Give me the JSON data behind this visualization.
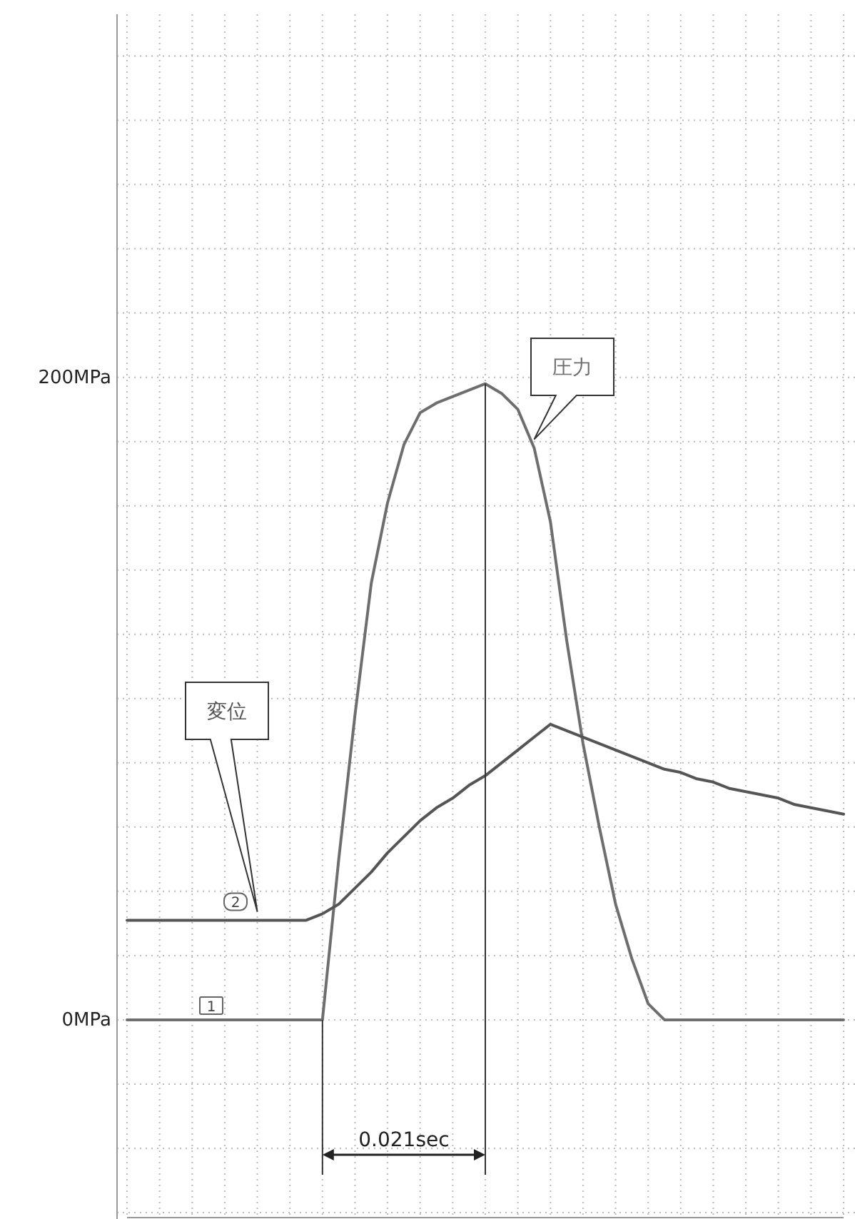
{
  "chart_data": {
    "type": "line",
    "categories": [
      null,
      null,
      null,
      null,
      null,
      null,
      null,
      null,
      null,
      null,
      null,
      null,
      null,
      null,
      null,
      null,
      null,
      null,
      null,
      null,
      null,
      null,
      null,
      null,
      null,
      null,
      null,
      null,
      null,
      null,
      null,
      null,
      null,
      null,
      null,
      null,
      null,
      null,
      null,
      null,
      null,
      null,
      null,
      null,
      null
    ],
    "ylim": [
      -62,
      313
    ],
    "yticks": [
      {
        "value": -60,
        "label": null
      },
      {
        "value": -40,
        "label": null
      },
      {
        "value": -20,
        "label": null
      },
      {
        "value": 0,
        "label": "0MPa"
      },
      {
        "value": 20,
        "label": null
      },
      {
        "value": 40,
        "label": null
      },
      {
        "value": 60,
        "label": null
      },
      {
        "value": 80,
        "label": null
      },
      {
        "value": 100,
        "label": null
      },
      {
        "value": 120,
        "label": null
      },
      {
        "value": 140,
        "label": null
      },
      {
        "value": 160,
        "label": null
      },
      {
        "value": 180,
        "label": null
      },
      {
        "value": 200,
        "label": "200MPa"
      },
      {
        "value": 220,
        "label": null
      },
      {
        "value": 240,
        "label": null
      },
      {
        "value": 260,
        "label": null
      },
      {
        "value": 280,
        "label": null
      },
      {
        "value": 300,
        "label": null
      }
    ],
    "grid": true,
    "series": [
      {
        "name": "圧力",
        "color": "#6e6e6e",
        "values": [
          0,
          0,
          0,
          0,
          0,
          0,
          0,
          0,
          0,
          0,
          0,
          0,
          0,
          50,
          95,
          136,
          161,
          179,
          189,
          192,
          194,
          196,
          198,
          195,
          190,
          178,
          155,
          118,
          86,
          60,
          36,
          19,
          5,
          0,
          0,
          0,
          0,
          0,
          0,
          0,
          0,
          0,
          0,
          0,
          0
        ]
      },
      {
        "name": "変位",
        "color": "#555555",
        "values": [
          31,
          31,
          31,
          31,
          31,
          31,
          31,
          31,
          31,
          31,
          31,
          31,
          33,
          36,
          41,
          46,
          52,
          57,
          62,
          66,
          69,
          73,
          76,
          80,
          84,
          88,
          92,
          90,
          88,
          86,
          84,
          82,
          80,
          78,
          77,
          75,
          74,
          72,
          71,
          70,
          69,
          67,
          66,
          65,
          64
        ]
      }
    ],
    "annotations": [
      "0.021sec",
      "2",
      "1"
    ]
  }
}
